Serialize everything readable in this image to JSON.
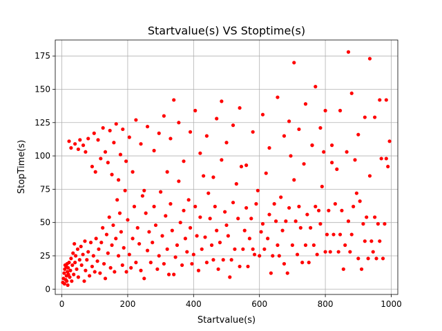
{
  "chart_data": {
    "type": "scatter",
    "title": "Startvalue(s) VS Stoptime(s)",
    "xlabel": "Startvalue(s)",
    "ylabel": "StopTime(s)",
    "xlim": [
      -20,
      1020
    ],
    "ylim": [
      -4,
      187
    ],
    "x_ticks": [
      0,
      200,
      400,
      600,
      800,
      1000
    ],
    "y_ticks": [
      0,
      25,
      50,
      75,
      100,
      125,
      150,
      175
    ],
    "grid": true,
    "marker_color": "#ff0000",
    "series": [
      {
        "values": [
          [
            3,
            5
          ],
          [
            5,
            8
          ],
          [
            7,
            12
          ],
          [
            8,
            4
          ],
          [
            9,
            15
          ],
          [
            10,
            18
          ],
          [
            12,
            7
          ],
          [
            13,
            17
          ],
          [
            14,
            10
          ],
          [
            15,
            6
          ],
          [
            16,
            19
          ],
          [
            17,
            13
          ],
          [
            18,
            3
          ],
          [
            19,
            16
          ],
          [
            20,
            11
          ],
          [
            22,
            20
          ],
          [
            24,
            9
          ],
          [
            26,
            14
          ],
          [
            28,
            23
          ],
          [
            30,
            6
          ],
          [
            32,
            18
          ],
          [
            34,
            27
          ],
          [
            36,
            11
          ],
          [
            38,
            34
          ],
          [
            40,
            20
          ],
          [
            42,
            25
          ],
          [
            45,
            15
          ],
          [
            48,
            30
          ],
          [
            50,
            9
          ],
          [
            54,
            22
          ],
          [
            58,
            32
          ],
          [
            60,
            18
          ],
          [
            64,
            26
          ],
          [
            68,
            6
          ],
          [
            70,
            36
          ],
          [
            72,
            14
          ],
          [
            76,
            22
          ],
          [
            80,
            28
          ],
          [
            84,
            10
          ],
          [
            88,
            35
          ],
          [
            92,
            17
          ],
          [
            96,
            25
          ],
          [
            100,
            13
          ],
          [
            104,
            38
          ],
          [
            108,
            21
          ],
          [
            112,
            30
          ],
          [
            116,
            12
          ],
          [
            120,
            35
          ],
          [
            124,
            46
          ],
          [
            128,
            19
          ],
          [
            132,
            8
          ],
          [
            136,
            41
          ],
          [
            140,
            27
          ],
          [
            144,
            54
          ],
          [
            148,
            16
          ],
          [
            152,
            33
          ],
          [
            156,
            48
          ],
          [
            160,
            13
          ],
          [
            164,
            38
          ],
          [
            168,
            67
          ],
          [
            172,
            25
          ],
          [
            176,
            57
          ],
          [
            180,
            43
          ],
          [
            184,
            18
          ],
          [
            188,
            31
          ],
          [
            192,
            74
          ],
          [
            196,
            13
          ],
          [
            200,
            52
          ],
          [
            205,
            26
          ],
          [
            210,
            16
          ],
          [
            215,
            38
          ],
          [
            220,
            62
          ],
          [
            225,
            20
          ],
          [
            230,
            46
          ],
          [
            235,
            34
          ],
          [
            240,
            14
          ],
          [
            245,
            70
          ],
          [
            250,
            8
          ],
          [
            255,
            57
          ],
          [
            260,
            29
          ],
          [
            265,
            43
          ],
          [
            270,
            20
          ],
          [
            275,
            35
          ],
          [
            280,
            62
          ],
          [
            285,
            48
          ],
          [
            290,
            15
          ],
          [
            295,
            25
          ],
          [
            300,
            73
          ],
          [
            305,
            40
          ],
          [
            310,
            19
          ],
          [
            315,
            55
          ],
          [
            320,
            30
          ],
          [
            325,
            11
          ],
          [
            330,
            64
          ],
          [
            335,
            44
          ],
          [
            340,
            11
          ],
          [
            345,
            24
          ],
          [
            350,
            33
          ],
          [
            355,
            81
          ],
          [
            360,
            50
          ],
          [
            365,
            18
          ],
          [
            370,
            59
          ],
          [
            375,
            38
          ],
          [
            380,
            28
          ],
          [
            385,
            67
          ],
          [
            390,
            46
          ],
          [
            395,
            19
          ],
          [
            400,
            26
          ],
          [
            405,
            62
          ],
          [
            410,
            40
          ],
          [
            415,
            14
          ],
          [
            420,
            54
          ],
          [
            425,
            30
          ],
          [
            430,
            85
          ],
          [
            435,
            39
          ],
          [
            440,
            20
          ],
          [
            445,
            72
          ],
          [
            450,
            53
          ],
          [
            455,
            33
          ],
          [
            460,
            22
          ],
          [
            465,
            62
          ],
          [
            470,
            44
          ],
          [
            475,
            15
          ],
          [
            480,
            35
          ],
          [
            485,
            97
          ],
          [
            490,
            22
          ],
          [
            495,
            58
          ],
          [
            500,
            48
          ],
          [
            505,
            40
          ],
          [
            510,
            9
          ],
          [
            515,
            22
          ],
          [
            520,
            65
          ],
          [
            525,
            30
          ],
          [
            530,
            79
          ],
          [
            535,
            53
          ],
          [
            540,
            17
          ],
          [
            545,
            92
          ],
          [
            550,
            30
          ],
          [
            555,
            44
          ],
          [
            560,
            61
          ],
          [
            565,
            17
          ],
          [
            570,
            38
          ],
          [
            575,
            53
          ],
          [
            580,
            30
          ],
          [
            585,
            26
          ],
          [
            590,
            64
          ],
          [
            595,
            74
          ],
          [
            600,
            25
          ],
          [
            605,
            43
          ],
          [
            610,
            49
          ],
          [
            615,
            30
          ],
          [
            620,
            87
          ],
          [
            625,
            38
          ],
          [
            630,
            56
          ],
          [
            635,
            12
          ],
          [
            640,
            25
          ],
          [
            645,
            64
          ],
          [
            650,
            51
          ],
          [
            655,
            33
          ],
          [
            660,
            25
          ],
          [
            665,
            69
          ],
          [
            670,
            44
          ],
          [
            675,
            19
          ],
          [
            680,
            51
          ],
          [
            685,
            12
          ],
          [
            690,
            61
          ],
          [
            695,
            100
          ],
          [
            700,
            33
          ],
          [
            705,
            82
          ],
          [
            710,
            51
          ],
          [
            715,
            26
          ],
          [
            720,
            62
          ],
          [
            725,
            46
          ],
          [
            730,
            20
          ],
          [
            735,
            94
          ],
          [
            740,
            33
          ],
          [
            745,
            56
          ],
          [
            750,
            20
          ],
          [
            755,
            46
          ],
          [
            760,
            108
          ],
          [
            765,
            33
          ],
          [
            770,
            62
          ],
          [
            775,
            26
          ],
          [
            780,
            59
          ],
          [
            785,
            49
          ],
          [
            790,
            77
          ],
          [
            795,
            103
          ],
          [
            800,
            28
          ],
          [
            805,
            41
          ],
          [
            810,
            59
          ],
          [
            815,
            28
          ],
          [
            820,
            108
          ],
          [
            825,
            41
          ],
          [
            830,
            64
          ],
          [
            835,
            90
          ],
          [
            840,
            28
          ],
          [
            845,
            41
          ],
          [
            850,
            59
          ],
          [
            855,
            15
          ],
          [
            860,
            33
          ],
          [
            865,
            103
          ],
          [
            870,
            51
          ],
          [
            875,
            28
          ],
          [
            880,
            41
          ],
          [
            885,
            62
          ],
          [
            890,
            97
          ],
          [
            895,
            72
          ],
          [
            900,
            23
          ],
          [
            905,
            66
          ],
          [
            910,
            15
          ],
          [
            915,
            49
          ],
          [
            920,
            36
          ],
          [
            925,
            54
          ],
          [
            930,
            23
          ],
          [
            935,
            85
          ],
          [
            940,
            36
          ],
          [
            945,
            28
          ],
          [
            950,
            54
          ],
          [
            955,
            23
          ],
          [
            960,
            49
          ],
          [
            965,
            36
          ],
          [
            970,
            98
          ],
          [
            975,
            23
          ],
          [
            980,
            49
          ],
          [
            985,
            98
          ],
          [
            990,
            92
          ],
          [
            995,
            111
          ],
          [
            22,
            111
          ],
          [
            28,
            106
          ],
          [
            40,
            109
          ],
          [
            50,
            105
          ],
          [
            55,
            112
          ],
          [
            65,
            108
          ],
          [
            72,
            103
          ],
          [
            80,
            113
          ],
          [
            92,
            92
          ],
          [
            98,
            117
          ],
          [
            102,
            88
          ],
          [
            110,
            112
          ],
          [
            118,
            98
          ],
          [
            125,
            121
          ],
          [
            132,
            103
          ],
          [
            140,
            95
          ],
          [
            146,
            119
          ],
          [
            152,
            86
          ],
          [
            158,
            110
          ],
          [
            165,
            124
          ],
          [
            172,
            82
          ],
          [
            178,
            101
          ],
          [
            185,
            120
          ],
          [
            195,
            96
          ],
          [
            205,
            114
          ],
          [
            215,
            88
          ],
          [
            225,
            127
          ],
          [
            240,
            109
          ],
          [
            250,
            74
          ],
          [
            260,
            122
          ],
          [
            280,
            104
          ],
          [
            295,
            117
          ],
          [
            310,
            130
          ],
          [
            320,
            88
          ],
          [
            330,
            113
          ],
          [
            340,
            142
          ],
          [
            355,
            125
          ],
          [
            370,
            96
          ],
          [
            390,
            118
          ],
          [
            405,
            134
          ],
          [
            420,
            102
          ],
          [
            440,
            115
          ],
          [
            460,
            84
          ],
          [
            470,
            128
          ],
          [
            485,
            141
          ],
          [
            500,
            110
          ],
          [
            520,
            123
          ],
          [
            540,
            136
          ],
          [
            560,
            93
          ],
          [
            580,
            118
          ],
          [
            610,
            131
          ],
          [
            630,
            106
          ],
          [
            655,
            144
          ],
          [
            675,
            115
          ],
          [
            690,
            126
          ],
          [
            705,
            170
          ],
          [
            720,
            120
          ],
          [
            740,
            139
          ],
          [
            760,
            108
          ],
          [
            770,
            152
          ],
          [
            785,
            121
          ],
          [
            800,
            134
          ],
          [
            820,
            95
          ],
          [
            845,
            134
          ],
          [
            870,
            178
          ],
          [
            880,
            147
          ],
          [
            900,
            116
          ],
          [
            920,
            129
          ],
          [
            935,
            173
          ],
          [
            950,
            129
          ],
          [
            965,
            142
          ],
          [
            985,
            142
          ]
        ]
      }
    ]
  }
}
